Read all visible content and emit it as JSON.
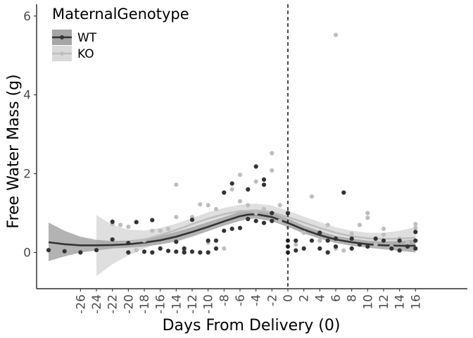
{
  "chart_data": {
    "type": "scatter",
    "title": "",
    "xlabel": "Days From Delivery (0)",
    "ylabel": "Free Water Mass (g)",
    "xlim": [
      -31.5,
      22.5
    ],
    "ylim": [
      -0.92,
      6.3
    ],
    "x_ticks": [
      -26,
      -24,
      -22,
      -20,
      -18,
      -16,
      -14,
      -12,
      -10,
      -8,
      -6,
      -4,
      -2,
      0,
      2,
      4,
      6,
      8,
      10,
      12,
      14,
      16
    ],
    "y_ticks": [
      0,
      2,
      4,
      6
    ],
    "vline_x": 0,
    "legend": {
      "title": "MaternalGenotype",
      "position": "top-left"
    },
    "grid": false,
    "colors": {
      "WT": "#333333",
      "KO": "#bebebe",
      "WT_band": "#a6a6a6",
      "KO_band": "#d9d9d9"
    },
    "series": [
      {
        "name": "WT",
        "color": "#333333",
        "band_color": "#a6a6a6",
        "points": [
          [
            -30,
            0.06
          ],
          [
            -28,
            0.03
          ],
          [
            -26,
            0.0
          ],
          [
            -24,
            0.06
          ],
          [
            -22,
            0.78
          ],
          [
            -22,
            0.33
          ],
          [
            -20,
            0.0
          ],
          [
            -20,
            0.24
          ],
          [
            -19,
            0.77
          ],
          [
            -18,
            0.02
          ],
          [
            -17,
            0.82
          ],
          [
            -17,
            0.0
          ],
          [
            -16,
            0.1
          ],
          [
            -15,
            0.04
          ],
          [
            -14,
            0.02
          ],
          [
            -14,
            0.27
          ],
          [
            -13,
            0.0
          ],
          [
            -13,
            0.1
          ],
          [
            -12,
            0.83
          ],
          [
            -12,
            0.02
          ],
          [
            -11,
            0.0
          ],
          [
            -10,
            0.0
          ],
          [
            -10,
            0.3
          ],
          [
            -9,
            0.3
          ],
          [
            -9,
            0.1
          ],
          [
            -8,
            1.52
          ],
          [
            -8,
            0.55
          ],
          [
            -7,
            1.75
          ],
          [
            -7,
            0.6
          ],
          [
            -6,
            0.62
          ],
          [
            -5,
            1.6
          ],
          [
            -5,
            0.85
          ],
          [
            -4,
            2.18
          ],
          [
            -4,
            0.8
          ],
          [
            -3,
            1.85
          ],
          [
            -3,
            1.72
          ],
          [
            -3,
            0.75
          ],
          [
            -2,
            1.0
          ],
          [
            -2,
            0.8
          ],
          [
            0,
            1.0
          ],
          [
            0,
            0.3
          ],
          [
            0,
            0.15
          ],
          [
            0,
            0.0
          ],
          [
            1,
            0.05
          ],
          [
            1,
            0.3
          ],
          [
            2,
            0.1
          ],
          [
            3,
            0.3
          ],
          [
            4,
            0.1
          ],
          [
            4,
            0.5
          ],
          [
            5,
            0.3
          ],
          [
            5,
            0.0
          ],
          [
            6,
            0.35
          ],
          [
            6,
            0.15
          ],
          [
            7,
            1.52
          ],
          [
            8,
            0.1
          ],
          [
            8,
            0.35
          ],
          [
            9,
            0.2
          ],
          [
            10,
            0.15
          ],
          [
            11,
            0.35
          ],
          [
            12,
            0.3
          ],
          [
            13,
            0.1
          ],
          [
            14,
            0.05
          ],
          [
            14,
            0.3
          ],
          [
            15,
            0.15
          ],
          [
            16,
            0.1
          ],
          [
            16,
            0.3
          ],
          [
            16,
            0.52
          ]
        ],
        "fit": [
          [
            -30,
            0.26,
            -0.22,
            0.76
          ],
          [
            -28,
            0.21,
            -0.1,
            0.55
          ],
          [
            -26,
            0.18,
            0.0,
            0.4
          ],
          [
            -24,
            0.18,
            0.05,
            0.32
          ],
          [
            -22,
            0.19,
            0.1,
            0.29
          ],
          [
            -20,
            0.21,
            0.12,
            0.3
          ],
          [
            -18,
            0.25,
            0.15,
            0.35
          ],
          [
            -16,
            0.31,
            0.2,
            0.42
          ],
          [
            -14,
            0.4,
            0.28,
            0.52
          ],
          [
            -12,
            0.52,
            0.4,
            0.64
          ],
          [
            -10,
            0.65,
            0.54,
            0.77
          ],
          [
            -8,
            0.79,
            0.68,
            0.9
          ],
          [
            -6,
            0.92,
            0.8,
            1.03
          ],
          [
            -5,
            0.96,
            0.85,
            1.07
          ],
          [
            -4,
            0.97,
            0.86,
            1.08
          ],
          [
            -2,
            0.9,
            0.79,
            1.01
          ],
          [
            0,
            0.75,
            0.65,
            0.86
          ],
          [
            2,
            0.58,
            0.48,
            0.68
          ],
          [
            4,
            0.44,
            0.35,
            0.54
          ],
          [
            6,
            0.33,
            0.24,
            0.42
          ],
          [
            8,
            0.26,
            0.17,
            0.35
          ],
          [
            10,
            0.21,
            0.12,
            0.3
          ],
          [
            12,
            0.18,
            0.08,
            0.28
          ],
          [
            14,
            0.17,
            0.04,
            0.29
          ],
          [
            16,
            0.17,
            0.0,
            0.33
          ]
        ]
      },
      {
        "name": "KO",
        "color": "#bebebe",
        "band_color": "#d9d9d9",
        "points": [
          [
            -22,
            0.72
          ],
          [
            -21,
            0.7
          ],
          [
            -20,
            0.65
          ],
          [
            -19,
            0.06
          ],
          [
            -18,
            0.3
          ],
          [
            -17,
            0.55
          ],
          [
            -16,
            0.55
          ],
          [
            -15,
            0.6
          ],
          [
            -14,
            1.72
          ],
          [
            -14,
            0.9
          ],
          [
            -13,
            0.05
          ],
          [
            -12,
            0.9
          ],
          [
            -11,
            1.22
          ],
          [
            -10,
            1.2
          ],
          [
            -10,
            0.25
          ],
          [
            -9,
            1.1
          ],
          [
            -8,
            0.1
          ],
          [
            -7,
            1.6
          ],
          [
            -6,
            1.97
          ],
          [
            -6,
            1.3
          ],
          [
            -5,
            1.2
          ],
          [
            -4,
            1.8
          ],
          [
            -4,
            1.0
          ],
          [
            -3,
            1.1
          ],
          [
            -2,
            2.52
          ],
          [
            -2,
            2.08
          ],
          [
            -1,
            1.2
          ],
          [
            -1,
            0.8
          ],
          [
            0,
            0.65
          ],
          [
            1,
            0.2
          ],
          [
            2,
            0.5
          ],
          [
            3,
            1.42
          ],
          [
            4,
            0.3
          ],
          [
            5,
            0.7
          ],
          [
            6,
            5.52
          ],
          [
            6,
            0.1
          ],
          [
            7,
            0.05
          ],
          [
            8,
            0.48
          ],
          [
            9,
            0.7
          ],
          [
            10,
            1.0
          ],
          [
            10,
            0.88
          ],
          [
            11,
            0.2
          ],
          [
            12,
            0.6
          ],
          [
            12,
            0.45
          ],
          [
            13,
            0.15
          ],
          [
            14,
            0.35
          ],
          [
            15,
            0.25
          ],
          [
            16,
            0.72
          ],
          [
            16,
            0.62
          ]
        ],
        "fit": [
          [
            -24,
            0.17,
            -0.6,
            0.95
          ],
          [
            -22,
            0.2,
            -0.3,
            0.7
          ],
          [
            -20,
            0.25,
            -0.08,
            0.58
          ],
          [
            -18,
            0.33,
            0.1,
            0.56
          ],
          [
            -16,
            0.44,
            0.26,
            0.62
          ],
          [
            -14,
            0.57,
            0.42,
            0.73
          ],
          [
            -12,
            0.72,
            0.57,
            0.87
          ],
          [
            -10,
            0.86,
            0.7,
            1.02
          ],
          [
            -8,
            0.97,
            0.82,
            1.13
          ],
          [
            -6,
            1.05,
            0.89,
            1.21
          ],
          [
            -4,
            1.07,
            0.91,
            1.24
          ],
          [
            -2,
            1.02,
            0.86,
            1.19
          ],
          [
            0,
            0.9,
            0.75,
            1.06
          ],
          [
            2,
            0.76,
            0.61,
            0.91
          ],
          [
            4,
            0.62,
            0.48,
            0.77
          ],
          [
            6,
            0.5,
            0.37,
            0.64
          ],
          [
            8,
            0.41,
            0.28,
            0.55
          ],
          [
            10,
            0.36,
            0.22,
            0.5
          ],
          [
            12,
            0.34,
            0.19,
            0.5
          ],
          [
            14,
            0.35,
            0.15,
            0.55
          ],
          [
            16,
            0.37,
            0.1,
            0.64
          ]
        ]
      }
    ]
  }
}
